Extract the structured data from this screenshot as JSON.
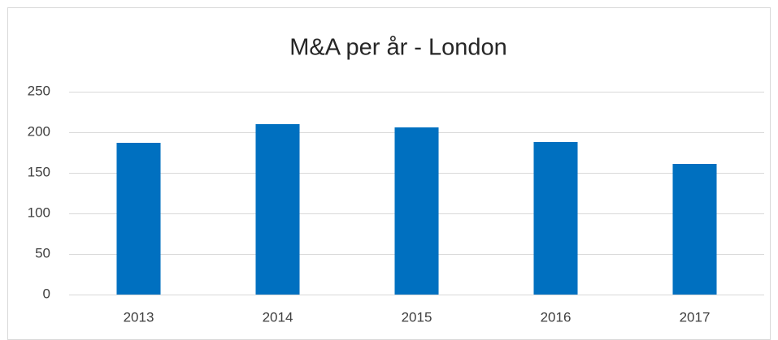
{
  "chart_data": {
    "type": "bar",
    "title": "M&A per år - London",
    "categories": [
      "2013",
      "2014",
      "2015",
      "2016",
      "2017"
    ],
    "values": [
      187,
      210,
      206,
      188,
      161
    ],
    "color": "#0070c0",
    "ylim": [
      0,
      250
    ],
    "yticks": [
      0,
      50,
      100,
      150,
      200,
      250
    ],
    "grid": true
  }
}
